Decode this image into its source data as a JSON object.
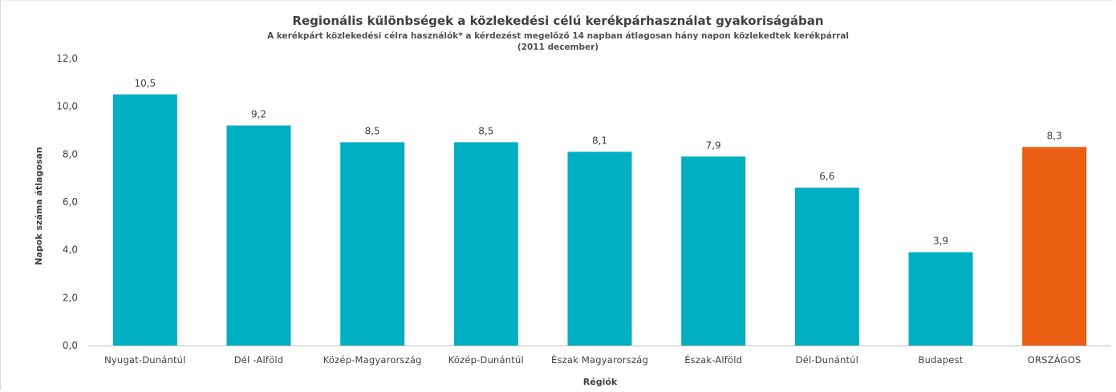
{
  "chart_data": {
    "type": "bar",
    "title": "Regionális különbségek a közlekedési célú kerékpárhasználat gyakoriságában",
    "subtitle": "A kerékpárt közlekedési célra használók* a kérdezést megelőző 14 napban átlagosan hány napon közlekedtek kerékpárral",
    "subtitle2": "(2011 december)",
    "xlabel": "Régiók",
    "ylabel": "Napok száma átlagosan",
    "ylim": [
      0,
      12
    ],
    "yticks": [
      "0,0",
      "2,0",
      "4,0",
      "6,0",
      "8,0",
      "10,0",
      "12,0"
    ],
    "grid": false,
    "categories": [
      "Nyugat-Dunántúl",
      "Dél -Alföld",
      "Közép-Magyarország",
      "Közép-Dunántúl",
      "Észak Magyarország",
      "Észak-Alföld",
      "Dél-Dunántúl",
      "Budapest",
      "ORSZÁGOS"
    ],
    "values": [
      10.5,
      9.2,
      8.5,
      8.5,
      8.1,
      7.9,
      6.6,
      3.9,
      8.3
    ],
    "value_labels": [
      "10,5",
      "9,2",
      "8,5",
      "8,5",
      "8,1",
      "7,9",
      "6,6",
      "3,9",
      "8,3"
    ],
    "colors": {
      "default": "#00AFC1",
      "highlight": "#EC5F12"
    },
    "highlight_index": 8
  }
}
